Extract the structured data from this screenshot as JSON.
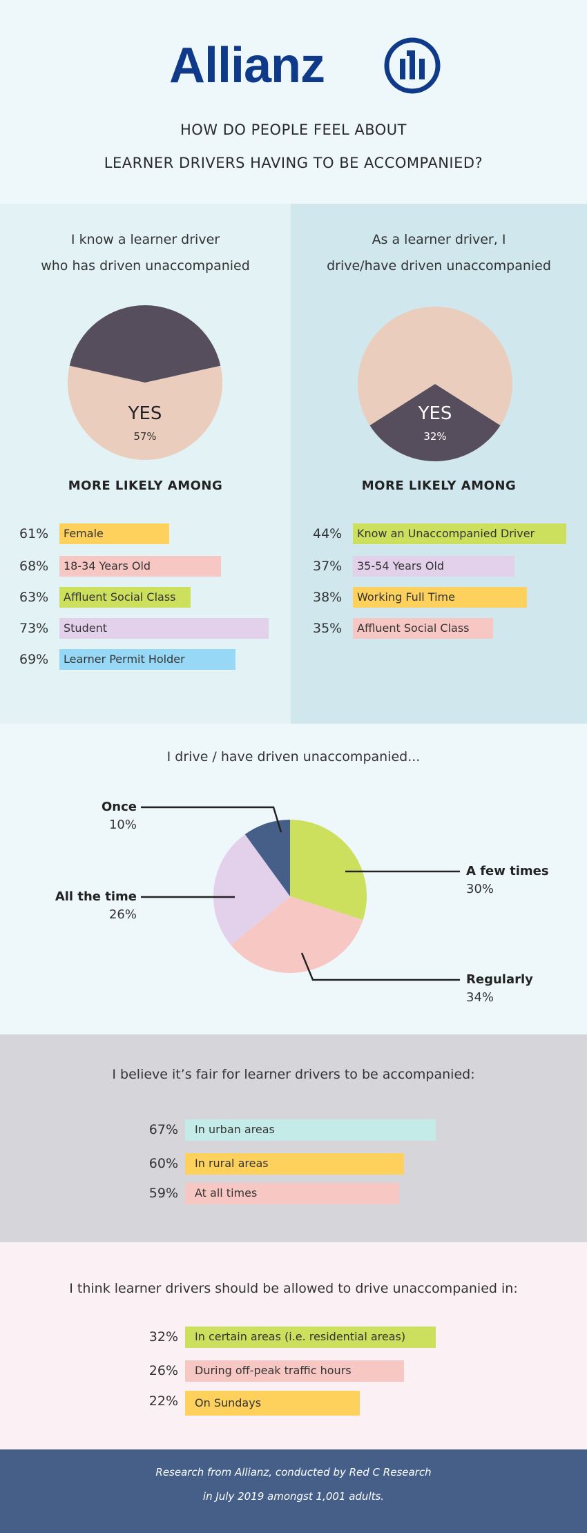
{
  "header": {
    "logo": "Allianz",
    "title_lines": [
      "HOW DO PEOPLE FEEL ABOUT",
      "LEARNER DRIVERS HAVING TO BE ACCOMPANIED?"
    ],
    "brand_color": "#0f3a8a"
  },
  "colors": {
    "yellow": "#fdd15c",
    "pink": "#f7c7c3",
    "green": "#cde05d",
    "lavender": "#e3d1ec",
    "blue": "#96d8f6",
    "mint": "#c4ebe8",
    "dark": "#564e5c",
    "peach": "#ebcdbe",
    "navy": "#465f88"
  },
  "left_panel": {
    "heading": [
      "I know a learner driver",
      "who has driven unaccompanied"
    ],
    "more_likely": "MORE LIKELY AMONG",
    "rows": [
      {
        "pct": "61%",
        "label": "Female"
      },
      {
        "pct": "68%",
        "label": "18-34 Years Old"
      },
      {
        "pct": "63%",
        "label": "Affluent Social Class"
      },
      {
        "pct": "73%",
        "label": "Student"
      },
      {
        "pct": "69%",
        "label": "Learner Permit Holder"
      }
    ]
  },
  "right_panel": {
    "heading": [
      "As a learner driver, I",
      "drive/have driven unaccompanied"
    ],
    "more_likely": "MORE LIKELY AMONG",
    "rows": [
      {
        "pct": "44%",
        "label": "Know an Unaccompanied Driver"
      },
      {
        "pct": "37%",
        "label": "35-54 Years Old"
      },
      {
        "pct": "38%",
        "label": "Working Full Time"
      },
      {
        "pct": "35%",
        "label": "Affluent Social Class"
      }
    ]
  },
  "frequency": {
    "title": "I drive / have driven unaccompanied..."
  },
  "fair": {
    "title": "I believe it’s fair for learner drivers to be accompanied:",
    "rows": [
      {
        "pct": "67%",
        "label": "In urban areas"
      },
      {
        "pct": "60%",
        "label": "In rural areas"
      },
      {
        "pct": "59%",
        "label": "At all times"
      }
    ]
  },
  "allowed": {
    "title": "I think learner drivers should be allowed to drive unaccompanied in:",
    "rows": [
      {
        "pct": "32%",
        "label": "In certain areas (i.e. residential areas)"
      },
      {
        "pct": "26%",
        "label": "During off-peak traffic hours"
      },
      {
        "pct": "22%",
        "label": "On Sundays"
      }
    ]
  },
  "footer": {
    "lines": [
      "Research from Allianz, conducted by Red C Research",
      "in July 2019 amongst 1,001 adults."
    ]
  },
  "chart_data": [
    {
      "type": "pie",
      "title": "I know a learner driver who has driven unaccompanied",
      "slices": [
        {
          "label": "YES",
          "value": 57,
          "display": "57%",
          "color": "#ebcdbe"
        },
        {
          "value": 43,
          "color": "#564e5c"
        }
      ]
    },
    {
      "type": "pie",
      "title": "As a learner driver, I drive/have driven unaccompanied",
      "slices": [
        {
          "label": "YES",
          "value": 32,
          "display": "32%",
          "color": "#564e5c"
        },
        {
          "value": 68,
          "color": "#ebcdbe"
        }
      ]
    },
    {
      "type": "pie",
      "title": "I drive / have driven unaccompanied...",
      "slices": [
        {
          "label": "A few times",
          "value": 30,
          "display": "30%",
          "color": "#cde05d"
        },
        {
          "label": "Regularly",
          "value": 34,
          "display": "34%",
          "color": "#f7c7c3"
        },
        {
          "label": "All the time",
          "value": 26,
          "display": "26%",
          "color": "#e3d1ec"
        },
        {
          "label": "Once",
          "value": 10,
          "display": "10%",
          "color": "#465f88"
        }
      ]
    }
  ]
}
